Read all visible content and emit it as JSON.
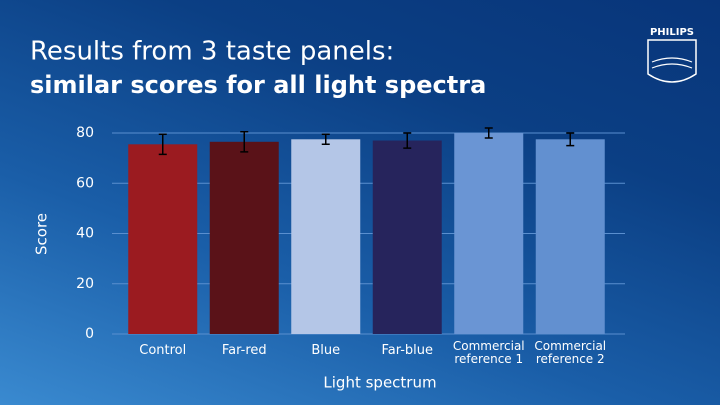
{
  "logo": "PHILIPS",
  "chart_data": {
    "type": "bar",
    "title": "Results from 3 taste panels:",
    "subtitle": "similar scores for all light spectra",
    "x_label": "Light spectrum",
    "y_label": "Score",
    "categories": [
      "Control",
      "Far-red",
      "Blue",
      "Far-blue",
      "Commercial reference 1",
      "Commercial reference 2"
    ],
    "values": [
      75.5,
      76.5,
      77.5,
      77,
      80,
      77.5
    ],
    "errors": [
      4,
      4,
      2,
      3,
      2,
      2.5
    ],
    "colors": [
      "#9b1b20",
      "#5a1218",
      "#b4c6e7",
      "#26245c",
      "#6a95d4",
      "#6290d0"
    ],
    "ylim": [
      0,
      80
    ],
    "yticks": [
      0,
      20,
      40,
      60,
      80
    ],
    "grid": true
  }
}
